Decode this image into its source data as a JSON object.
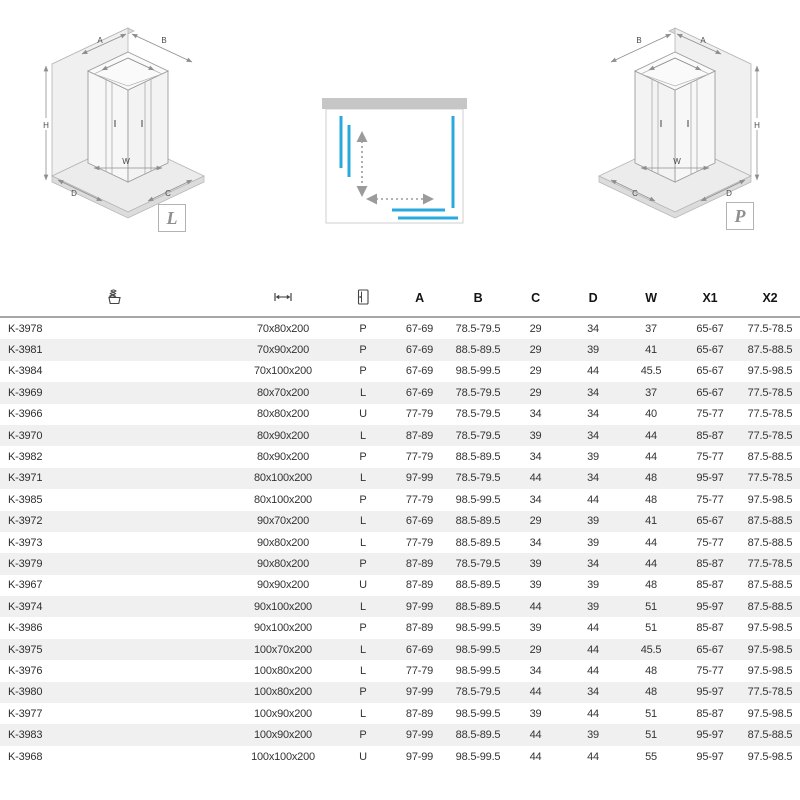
{
  "diagrams": {
    "left": {
      "badge": "L",
      "labels": {
        "a": "A",
        "b": "B",
        "h": "H",
        "w": "W",
        "d": "D",
        "c": "C"
      }
    },
    "right": {
      "badge": "P",
      "labels": {
        "a": "A",
        "b": "B",
        "h": "H",
        "w": "W",
        "d": "D",
        "c": "C"
      }
    }
  },
  "colors": {
    "accent_blue": "#29a9dc",
    "wall_gray": "#c6c6c6",
    "arrow_gray": "#9b9b9b",
    "row_alt_gray": "#f0f0f0"
  },
  "table": {
    "header_icons": [
      "product-stack-icon",
      "dimensions-icon",
      "door-icon"
    ],
    "columns": [
      "A",
      "B",
      "C",
      "D",
      "W",
      "X1",
      "X2"
    ],
    "rows": [
      {
        "code": "K-3978",
        "size": "70x80x200",
        "door": "P",
        "a": "67-69",
        "b": "78.5-79.5",
        "c": "29",
        "d": "34",
        "w": "37",
        "x1": "65-67",
        "x2": "77.5-78.5"
      },
      {
        "code": "K-3981",
        "size": "70x90x200",
        "door": "P",
        "a": "67-69",
        "b": "88.5-89.5",
        "c": "29",
        "d": "39",
        "w": "41",
        "x1": "65-67",
        "x2": "87.5-88.5"
      },
      {
        "code": "K-3984",
        "size": "70x100x200",
        "door": "P",
        "a": "67-69",
        "b": "98.5-99.5",
        "c": "29",
        "d": "44",
        "w": "45.5",
        "x1": "65-67",
        "x2": "97.5-98.5"
      },
      {
        "code": "K-3969",
        "size": "80x70x200",
        "door": "L",
        "a": "67-69",
        "b": "78.5-79.5",
        "c": "29",
        "d": "34",
        "w": "37",
        "x1": "65-67",
        "x2": "77.5-78.5"
      },
      {
        "code": "K-3966",
        "size": "80x80x200",
        "door": "U",
        "a": "77-79",
        "b": "78.5-79.5",
        "c": "34",
        "d": "34",
        "w": "40",
        "x1": "75-77",
        "x2": "77.5-78.5"
      },
      {
        "code": "K-3970",
        "size": "80x90x200",
        "door": "L",
        "a": "87-89",
        "b": "78.5-79.5",
        "c": "39",
        "d": "34",
        "w": "44",
        "x1": "85-87",
        "x2": "77.5-78.5"
      },
      {
        "code": "K-3982",
        "size": "80x90x200",
        "door": "P",
        "a": "77-79",
        "b": "88.5-89.5",
        "c": "34",
        "d": "39",
        "w": "44",
        "x1": "75-77",
        "x2": "87.5-88.5"
      },
      {
        "code": "K-3971",
        "size": "80x100x200",
        "door": "L",
        "a": "97-99",
        "b": "78.5-79.5",
        "c": "44",
        "d": "34",
        "w": "48",
        "x1": "95-97",
        "x2": "77.5-78.5"
      },
      {
        "code": "K-3985",
        "size": "80x100x200",
        "door": "P",
        "a": "77-79",
        "b": "98.5-99.5",
        "c": "34",
        "d": "44",
        "w": "48",
        "x1": "75-77",
        "x2": "97.5-98.5"
      },
      {
        "code": "K-3972",
        "size": "90x70x200",
        "door": "L",
        "a": "67-69",
        "b": "88.5-89.5",
        "c": "29",
        "d": "39",
        "w": "41",
        "x1": "65-67",
        "x2": "87.5-88.5"
      },
      {
        "code": "K-3973",
        "size": "90x80x200",
        "door": "L",
        "a": "77-79",
        "b": "88.5-89.5",
        "c": "34",
        "d": "39",
        "w": "44",
        "x1": "75-77",
        "x2": "87.5-88.5"
      },
      {
        "code": "K-3979",
        "size": "90x80x200",
        "door": "P",
        "a": "87-89",
        "b": "78.5-79.5",
        "c": "39",
        "d": "34",
        "w": "44",
        "x1": "85-87",
        "x2": "77.5-78.5"
      },
      {
        "code": "K-3967",
        "size": "90x90x200",
        "door": "U",
        "a": "87-89",
        "b": "88.5-89.5",
        "c": "39",
        "d": "39",
        "w": "48",
        "x1": "85-87",
        "x2": "87.5-88.5"
      },
      {
        "code": "K-3974",
        "size": "90x100x200",
        "door": "L",
        "a": "97-99",
        "b": "88.5-89.5",
        "c": "44",
        "d": "39",
        "w": "51",
        "x1": "95-97",
        "x2": "87.5-88.5"
      },
      {
        "code": "K-3986",
        "size": "90x100x200",
        "door": "P",
        "a": "87-89",
        "b": "98.5-99.5",
        "c": "39",
        "d": "44",
        "w": "51",
        "x1": "85-87",
        "x2": "97.5-98.5"
      },
      {
        "code": "K-3975",
        "size": "100x70x200",
        "door": "L",
        "a": "67-69",
        "b": "98.5-99.5",
        "c": "29",
        "d": "44",
        "w": "45.5",
        "x1": "65-67",
        "x2": "97.5-98.5"
      },
      {
        "code": "K-3976",
        "size": "100x80x200",
        "door": "L",
        "a": "77-79",
        "b": "98.5-99.5",
        "c": "34",
        "d": "44",
        "w": "48",
        "x1": "75-77",
        "x2": "97.5-98.5"
      },
      {
        "code": "K-3980",
        "size": "100x80x200",
        "door": "P",
        "a": "97-99",
        "b": "78.5-79.5",
        "c": "44",
        "d": "34",
        "w": "48",
        "x1": "95-97",
        "x2": "77.5-78.5"
      },
      {
        "code": "K-3977",
        "size": "100x90x200",
        "door": "L",
        "a": "87-89",
        "b": "98.5-99.5",
        "c": "39",
        "d": "44",
        "w": "51",
        "x1": "85-87",
        "x2": "97.5-98.5"
      },
      {
        "code": "K-3983",
        "size": "100x90x200",
        "door": "P",
        "a": "97-99",
        "b": "88.5-89.5",
        "c": "44",
        "d": "39",
        "w": "51",
        "x1": "95-97",
        "x2": "87.5-88.5"
      },
      {
        "code": "K-3968",
        "size": "100x100x200",
        "door": "U",
        "a": "97-99",
        "b": "98.5-99.5",
        "c": "44",
        "d": "44",
        "w": "55",
        "x1": "95-97",
        "x2": "97.5-98.5"
      }
    ]
  }
}
